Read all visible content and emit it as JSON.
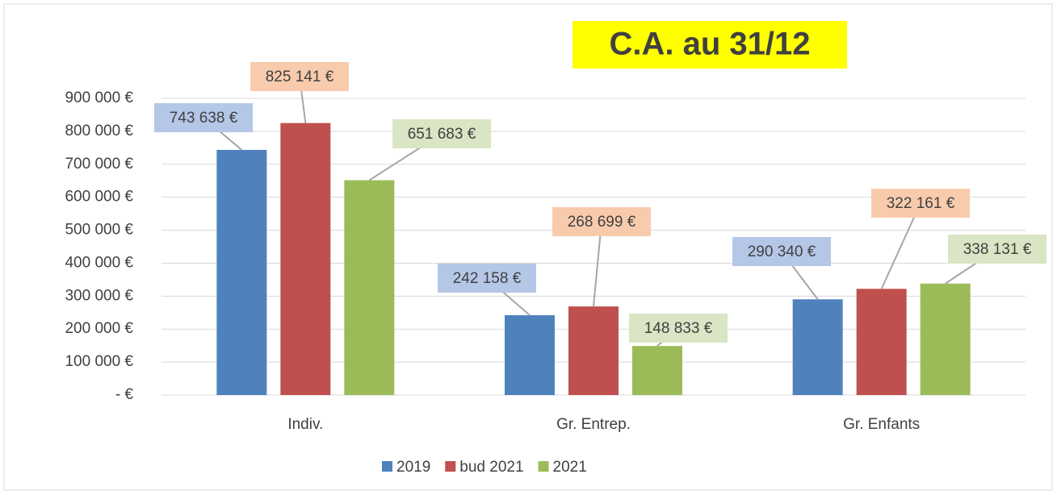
{
  "chart_data": {
    "type": "bar",
    "title": "C.A. au 31/12",
    "categories": [
      "Indiv.",
      "Gr.  Entrep.",
      "Gr. Enfants"
    ],
    "series": [
      {
        "name": "2019",
        "color": "#4f81bd",
        "values": [
          743638,
          242158,
          290340
        ],
        "value_labels": [
          "743 638 €",
          "242 158 €",
          "290 340 €"
        ]
      },
      {
        "name": "bud 2021",
        "color": "#c0504d",
        "values": [
          825141,
          268699,
          322161
        ],
        "value_labels": [
          "825 141 €",
          "268 699 €",
          "322 161 €"
        ]
      },
      {
        "name": "2021",
        "color": "#9bbb59",
        "values": [
          651683,
          148833,
          338131
        ],
        "value_labels": [
          "651 683 €",
          "148 833 €",
          "338 131 €"
        ]
      }
    ],
    "ylim": [
      0,
      900000
    ],
    "yticks": [
      {
        "value": 0,
        "label": "-   €"
      },
      {
        "value": 100000,
        "label": "100 000 €"
      },
      {
        "value": 200000,
        "label": "200 000 €"
      },
      {
        "value": 300000,
        "label": "300 000 €"
      },
      {
        "value": 400000,
        "label": "400 000 €"
      },
      {
        "value": 500000,
        "label": "500 000 €"
      },
      {
        "value": 600000,
        "label": "600 000 €"
      },
      {
        "value": 700000,
        "label": "700 000 €"
      },
      {
        "value": 800000,
        "label": "800 000 €"
      },
      {
        "value": 900000,
        "label": "900 000 €"
      }
    ],
    "grid": true,
    "legend": "bottom"
  }
}
